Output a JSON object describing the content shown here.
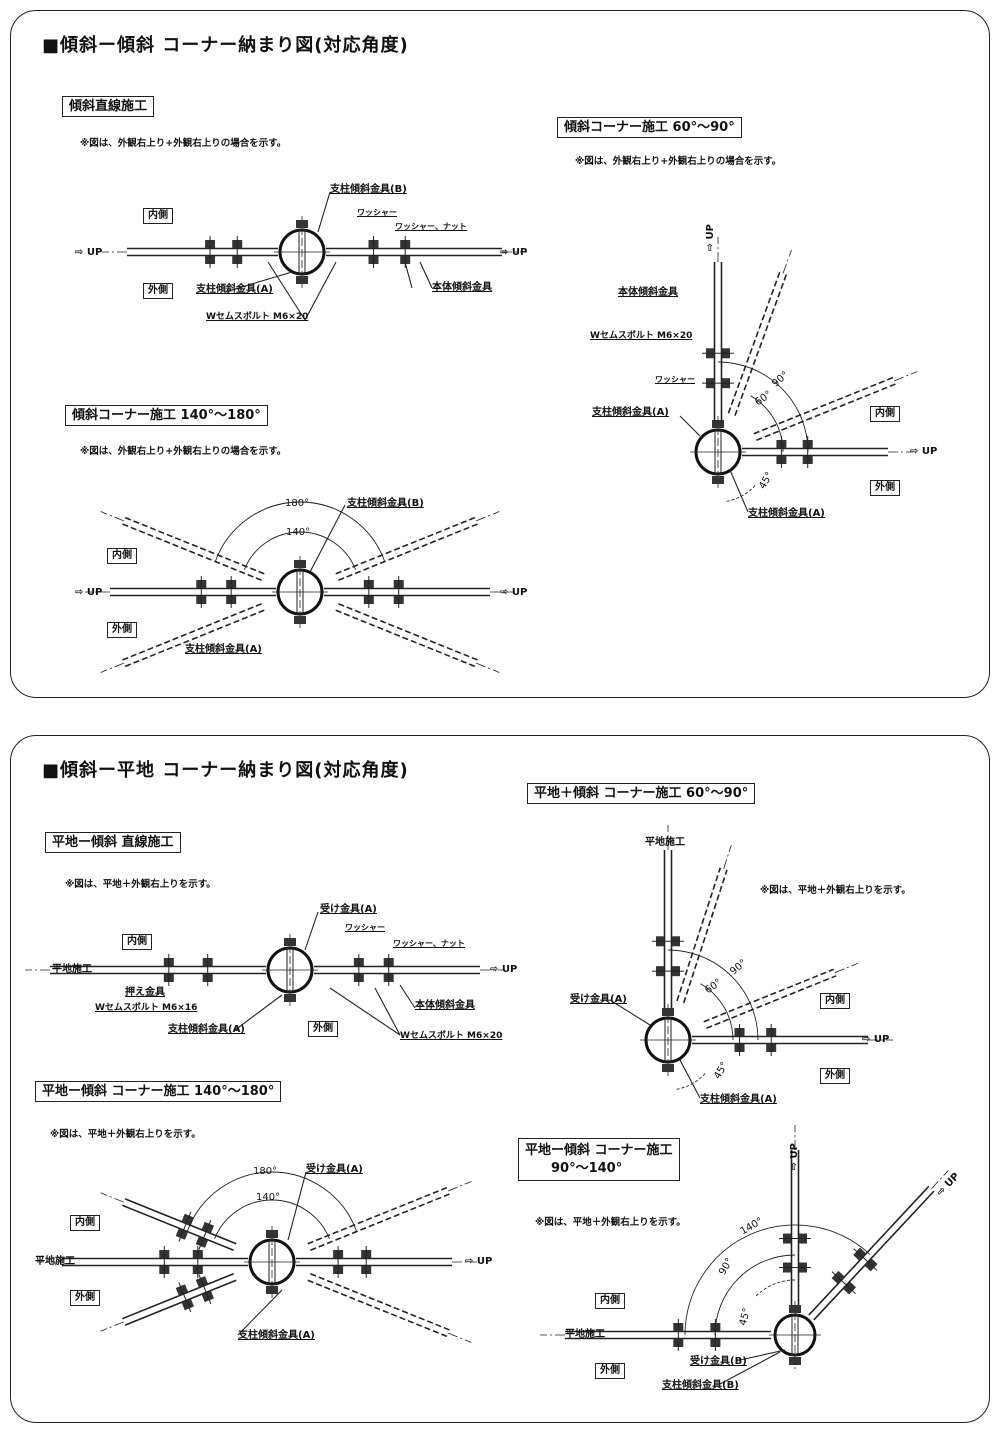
{
  "sections": [
    {
      "title": "■傾斜ー傾斜 コーナー納まり図(対応角度)",
      "diagrams": [
        {
          "heading": "傾斜直線施工",
          "note": "※図は、外観右上り+外観右上りの場合を示す。",
          "labels": {
            "inside": "内側",
            "outside": "外側",
            "up_left": "⇨ UP",
            "up_right": "⇨ UP",
            "post_b": "支柱傾斜金具(B)",
            "washer": "ワッシャー",
            "washer_nut": "ワッシャー、ナット",
            "post_a": "支柱傾斜金具(A)",
            "body": "本体傾斜金具",
            "bolt": "Wセムスボルト M6×20"
          }
        },
        {
          "heading": "傾斜コーナー施工 140°～180°",
          "note": "※図は、外観右上り+外観右上りの場合を示す。",
          "labels": {
            "angle_outer": "180°",
            "angle_inner": "140°",
            "post_b": "支柱傾斜金具(B)",
            "inside": "内側",
            "outside": "外側",
            "up_left": "⇨ UP",
            "up_right": "⇨ UP",
            "post_a": "支柱傾斜金具(A)"
          }
        },
        {
          "heading": "傾斜コーナー施工 60°～90°",
          "note": "※図は、外観右上り+外観右上りの場合を示す。",
          "labels": {
            "up_vertical": "⇨ UP",
            "body": "本体傾斜金具",
            "bolt": "Wセムスボルト M6×20",
            "washer": "ワッシャー",
            "post_a_left": "支柱傾斜金具(A)",
            "angle_90": "90°",
            "angle_60": "60°",
            "angle_45": "45°",
            "inside": "内側",
            "up_right": "⇨ UP",
            "outside": "外側",
            "post_a_bottom": "支柱傾斜金具(A)"
          }
        }
      ]
    },
    {
      "title": "■傾斜ー平地 コーナー納まり図(対応角度)",
      "diagrams": [
        {
          "heading": "平地ー傾斜 直線施工",
          "note": "※図は、平地＋外観右上りを示す。",
          "labels": {
            "inside": "内側",
            "flat": "平地施工",
            "presser": "押え金具",
            "bolt16": "Wセムスボルト M6×16",
            "post_a": "支柱傾斜金具(A)",
            "outside": "外側",
            "bolt20": "Wセムスボルト M6×20",
            "body": "本体傾斜金具",
            "receiver_a": "受け金具(A)",
            "washer": "ワッシャー",
            "washer_nut": "ワッシャー、ナット",
            "up_right": "⇨ UP"
          }
        },
        {
          "heading": "平地ー傾斜 コーナー施工 140°～180°",
          "note": "※図は、平地＋外観右上りを示す。",
          "labels": {
            "angle_outer": "180°",
            "receiver_a": "受け金具(A)",
            "angle_inner": "140°",
            "inside": "内側",
            "flat": "平地施工",
            "outside": "外側",
            "up_right": "⇨ UP",
            "post_a": "支柱傾斜金具(A)"
          }
        },
        {
          "heading": "平地＋傾斜 コーナー施工 60°～90°",
          "note": "※図は、平地＋外観右上りを示す。",
          "labels": {
            "flat": "平地施工",
            "receiver_a": "受け金具(A)",
            "angle_90": "90°",
            "angle_60": "60°",
            "inside": "内側",
            "up_right": "⇨ UP",
            "angle_45": "45°",
            "outside": "外側",
            "post_a": "支柱傾斜金具(A)"
          }
        },
        {
          "heading_line1": "平地ー傾斜 コーナー施工",
          "heading_line2": "90°～140°",
          "note": "※図は、平地＋外観右上りを示す。",
          "labels": {
            "up_vertical": "⇨ UP",
            "up_diagonal": "⇨ UP",
            "angle_140": "140°",
            "angle_90": "90°",
            "angle_45": "45°",
            "inside": "内側",
            "flat": "平地施工",
            "outside": "外側",
            "receiver_b": "受け金具(B)",
            "post_b": "支柱傾斜金具(B)"
          }
        }
      ]
    }
  ]
}
